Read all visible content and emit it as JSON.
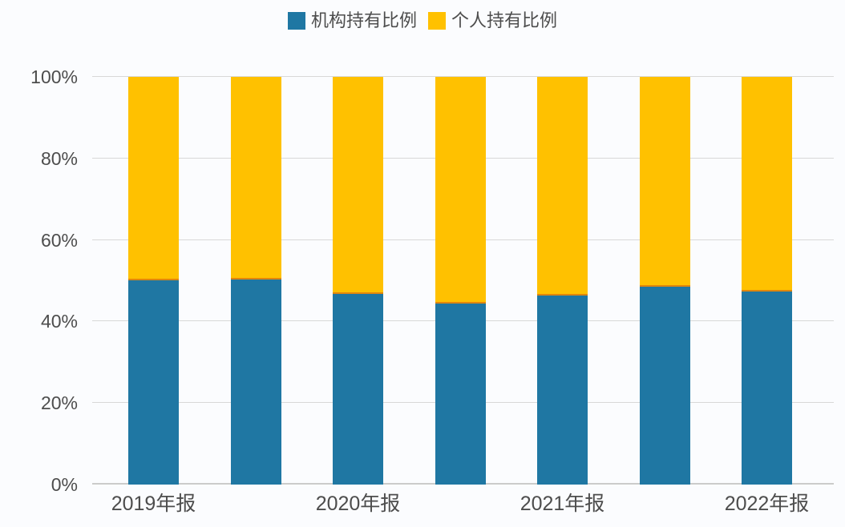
{
  "chart_data": {
    "type": "bar",
    "stacked": true,
    "unit": "percent",
    "title": "",
    "xlabel": "",
    "ylabel": "",
    "categories": [
      "2019年报",
      "",
      "2020年报",
      "",
      "2021年报",
      "",
      "2022年报"
    ],
    "series": [
      {
        "name": "机构持有比例",
        "color": "#1F77A3",
        "values": [
          50.1,
          50.3,
          46.7,
          44.4,
          46.4,
          48.5,
          47.4
        ]
      },
      {
        "name": "个人持有比例",
        "color": "#FFC100",
        "values": [
          49.9,
          49.7,
          53.3,
          55.6,
          53.6,
          51.5,
          52.6
        ]
      }
    ],
    "y_ticks": [
      "0%",
      "20%",
      "40%",
      "60%",
      "80%",
      "100%"
    ],
    "ylim": [
      0,
      100
    ],
    "grid": true,
    "legend_position": "top",
    "series_boundary_color": "#E0860D",
    "text_color": "#4D4D4D",
    "gridline_color": "#D8D8D8",
    "axis_line_color": "#CBCBCB",
    "background_color": "#FBFCFE"
  }
}
